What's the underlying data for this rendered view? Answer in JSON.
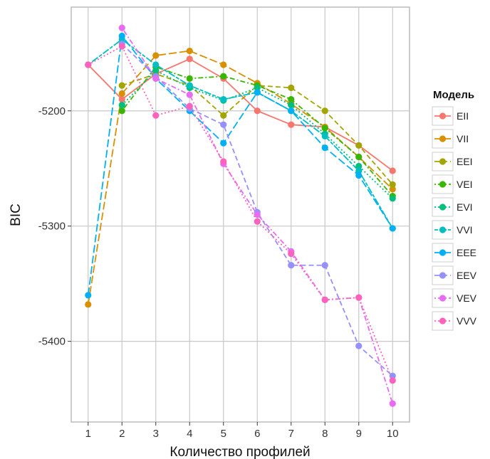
{
  "chart_data": {
    "type": "line",
    "xlabel": "Количество профилей",
    "ylabel": "BIC",
    "x": [
      1,
      2,
      3,
      4,
      5,
      6,
      7,
      8,
      9,
      10
    ],
    "xlim": [
      0.5,
      10.5
    ],
    "ylim": [
      -5470,
      -5110
    ],
    "yticks": [
      -5200,
      -5300,
      -5400
    ],
    "legend_title": "Модель",
    "legend_position": "right",
    "grid": true,
    "series": [
      {
        "name": "EII",
        "color": "#F8766D",
        "dash": "solid",
        "values": [
          -5160,
          -5190,
          -5168,
          -5155,
          -5172,
          -5200,
          -5212,
          -5214,
          -5230,
          -5252
        ]
      },
      {
        "name": "VII",
        "color": "#D89000",
        "dash": "longdash",
        "values": [
          -5368,
          -5185,
          -5152,
          -5148,
          -5160,
          -5176,
          -5194,
          -5214,
          -5240,
          -5268
        ]
      },
      {
        "name": "EEI",
        "color": "#A3A500",
        "dash": "dashed",
        "values": [
          null,
          -5178,
          -5168,
          -5178,
          -5204,
          -5178,
          -5180,
          -5200,
          -5230,
          -5264
        ]
      },
      {
        "name": "VEI",
        "color": "#39B600",
        "dash": "dotdash",
        "values": [
          null,
          -5200,
          -5162,
          -5172,
          -5170,
          -5178,
          -5190,
          -5215,
          -5240,
          -5274
        ]
      },
      {
        "name": "EVI",
        "color": "#00BF7D",
        "dash": "dotted",
        "values": [
          null,
          -5195,
          -5165,
          -5180,
          -5191,
          -5180,
          -5195,
          -5220,
          -5248,
          -5276
        ]
      },
      {
        "name": "VVI",
        "color": "#00BFC4",
        "dash": "twodash",
        "values": [
          -5160,
          -5138,
          -5160,
          -5178,
          -5190,
          -5184,
          -5200,
          -5222,
          -5252,
          -5302
        ]
      },
      {
        "name": "EEE",
        "color": "#00B0F6",
        "dash": "longdash",
        "values": [
          -5360,
          -5135,
          -5172,
          -5200,
          -5228,
          -5184,
          -5200,
          -5232,
          -5256,
          -5302
        ]
      },
      {
        "name": "EEV",
        "color": "#9590FF",
        "dash": "dashed",
        "values": [
          null,
          -5142,
          -5170,
          -5198,
          -5212,
          -5288,
          -5334,
          -5334,
          -5404,
          -5430
        ]
      },
      {
        "name": "VEV",
        "color": "#E76BF3",
        "dash": "dotdash",
        "values": [
          null,
          -5128,
          -5172,
          -5186,
          -5246,
          -5290,
          -5322,
          -5364,
          -5362,
          -5454
        ]
      },
      {
        "name": "VVV",
        "color": "#FF62BC",
        "dash": "dotted",
        "values": [
          -5160,
          -5144,
          -5204,
          -5196,
          -5244,
          -5296,
          -5324,
          -5364,
          -5362,
          -5434
        ]
      }
    ]
  }
}
